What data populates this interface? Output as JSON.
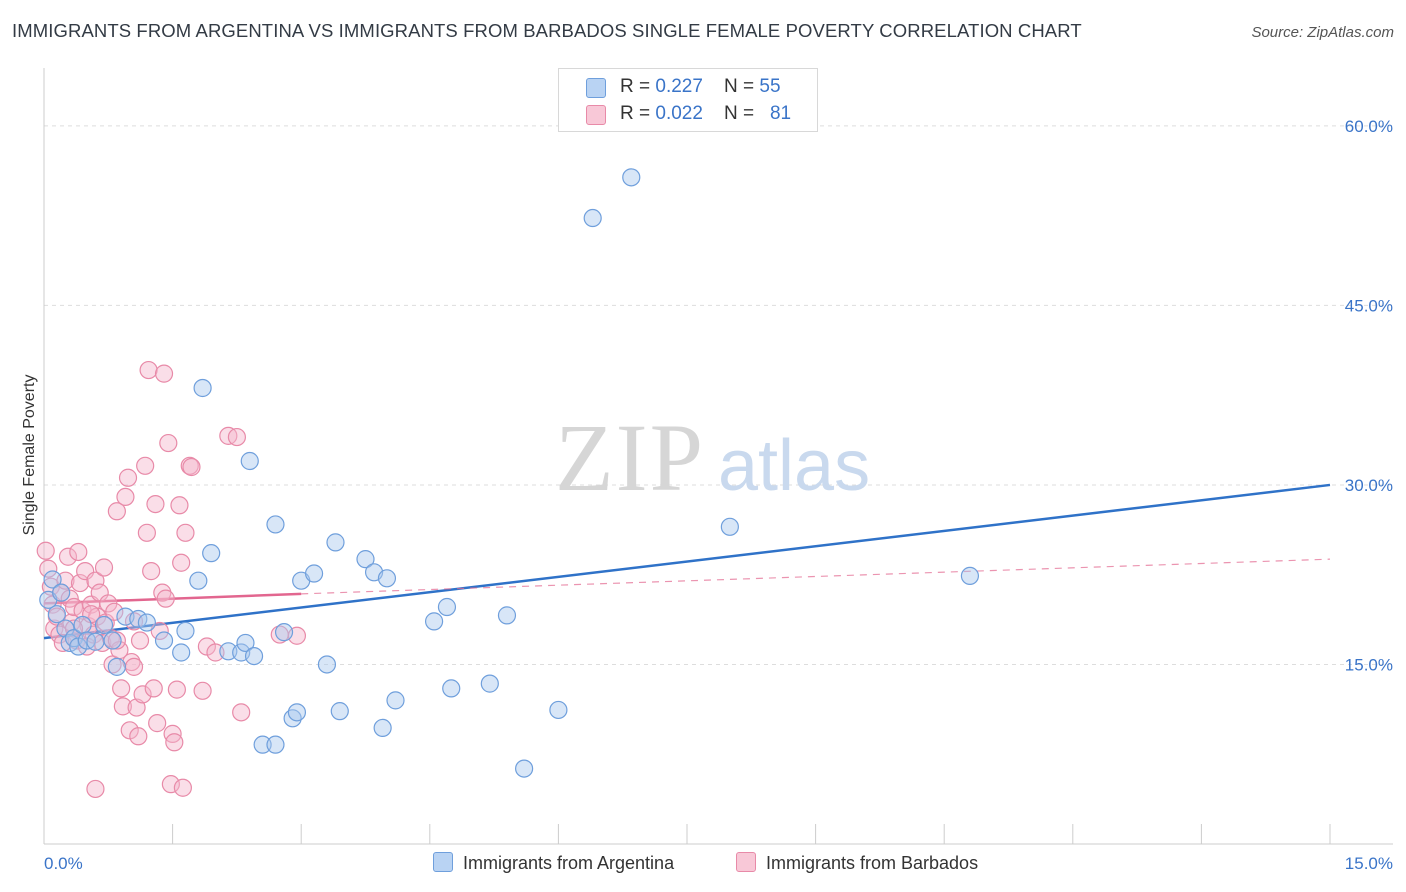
{
  "title": "IMMIGRANTS FROM ARGENTINA VS IMMIGRANTS FROM BARBADOS SINGLE FEMALE POVERTY CORRELATION CHART",
  "source": "Source: ZipAtlas.com",
  "watermark": {
    "zip": "ZIP",
    "atlas": "atlas"
  },
  "legend": {
    "argentina": {
      "r_label": "R = ",
      "r_value": "0.227",
      "n_label": "N = ",
      "n_value": "55"
    },
    "barbados": {
      "r_label": "R = ",
      "r_value": "0.022",
      "n_label": "N = ",
      "n_value": "81"
    }
  },
  "colors": {
    "argentina_fill": "#a9c8ee",
    "argentina_stroke": "#6f9fdc",
    "argentina_line": "#2f72c8",
    "barbados_fill": "#f5b6cb",
    "barbados_stroke": "#e88aa8",
    "barbados_line": "#e2668f",
    "axis_text": "#3a74c8",
    "grid": "#dddddd"
  },
  "chart_data": {
    "type": "scatter",
    "title": "IMMIGRANTS FROM ARGENTINA VS IMMIGRANTS FROM BARBADOS SINGLE FEMALE POVERTY CORRELATION CHART",
    "xlabel": "",
    "ylabel": "Single Female Poverty",
    "xlim": [
      0,
      15
    ],
    "ylim": [
      0,
      64
    ],
    "x_tick_labels": [
      "0.0%",
      "15.0%"
    ],
    "y_ticks": [
      15,
      30,
      45,
      60
    ],
    "y_tick_labels": [
      "15.0%",
      "30.0%",
      "45.0%",
      "60.0%"
    ],
    "grid": true,
    "series": [
      {
        "name": "Immigrants from Argentina",
        "r": 0.227,
        "n": 55,
        "trend": {
          "x": [
            0,
            15
          ],
          "y": [
            17.2,
            30.0
          ]
        },
        "points": [
          [
            0.05,
            20.4
          ],
          [
            0.1,
            22.1
          ],
          [
            0.15,
            19.2
          ],
          [
            0.2,
            21.0
          ],
          [
            0.25,
            18.0
          ],
          [
            0.3,
            16.8
          ],
          [
            0.35,
            17.2
          ],
          [
            0.4,
            16.5
          ],
          [
            0.45,
            18.3
          ],
          [
            0.5,
            17.0
          ],
          [
            0.6,
            16.9
          ],
          [
            0.7,
            18.3
          ],
          [
            0.8,
            17.0
          ],
          [
            0.85,
            14.8
          ],
          [
            0.95,
            19.0
          ],
          [
            1.1,
            18.8
          ],
          [
            1.2,
            18.5
          ],
          [
            1.4,
            17.0
          ],
          [
            1.6,
            16.0
          ],
          [
            1.65,
            17.8
          ],
          [
            1.8,
            22.0
          ],
          [
            1.95,
            24.3
          ],
          [
            2.15,
            16.1
          ],
          [
            2.3,
            16.0
          ],
          [
            2.35,
            16.8
          ],
          [
            2.45,
            15.7
          ],
          [
            2.55,
            8.3
          ],
          [
            2.7,
            8.3
          ],
          [
            2.8,
            17.7
          ],
          [
            2.9,
            10.5
          ],
          [
            2.95,
            11.0
          ],
          [
            3.0,
            22.0
          ],
          [
            3.15,
            22.6
          ],
          [
            3.3,
            15.0
          ],
          [
            3.4,
            25.2
          ],
          [
            3.45,
            11.1
          ],
          [
            3.75,
            23.8
          ],
          [
            3.85,
            22.7
          ],
          [
            3.95,
            9.7
          ],
          [
            4.0,
            22.2
          ],
          [
            4.1,
            12.0
          ],
          [
            4.55,
            18.6
          ],
          [
            4.7,
            19.8
          ],
          [
            4.75,
            13.0
          ],
          [
            5.2,
            13.4
          ],
          [
            5.4,
            19.1
          ],
          [
            5.6,
            6.3
          ],
          [
            6.0,
            11.2
          ],
          [
            6.4,
            52.3
          ],
          [
            6.85,
            55.7
          ],
          [
            8.0,
            26.5
          ],
          [
            10.8,
            22.4
          ],
          [
            1.85,
            38.1
          ],
          [
            2.4,
            32.0
          ],
          [
            2.7,
            26.7
          ]
        ]
      },
      {
        "name": "Immigrants from Barbados",
        "r": 0.022,
        "n": 81,
        "trend": {
          "x": [
            0,
            3.0
          ],
          "y": [
            20.1,
            20.9
          ]
        },
        "trend_dashed": {
          "x": [
            3.0,
            15
          ],
          "y": [
            20.9,
            23.8
          ]
        },
        "points": [
          [
            0.02,
            24.5
          ],
          [
            0.05,
            23.0
          ],
          [
            0.08,
            21.5
          ],
          [
            0.1,
            20.0
          ],
          [
            0.12,
            18.0
          ],
          [
            0.15,
            19.0
          ],
          [
            0.18,
            17.5
          ],
          [
            0.2,
            21.0
          ],
          [
            0.22,
            16.8
          ],
          [
            0.25,
            22.0
          ],
          [
            0.28,
            24.0
          ],
          [
            0.3,
            20.5
          ],
          [
            0.32,
            18.5
          ],
          [
            0.35,
            19.8
          ],
          [
            0.38,
            17.0
          ],
          [
            0.4,
            24.4
          ],
          [
            0.42,
            21.8
          ],
          [
            0.45,
            19.5
          ],
          [
            0.48,
            22.8
          ],
          [
            0.5,
            16.5
          ],
          [
            0.52,
            18.2
          ],
          [
            0.55,
            20.0
          ],
          [
            0.58,
            17.5
          ],
          [
            0.6,
            22.0
          ],
          [
            0.62,
            19.0
          ],
          [
            0.65,
            21.0
          ],
          [
            0.68,
            16.8
          ],
          [
            0.7,
            23.1
          ],
          [
            0.72,
            18.5
          ],
          [
            0.75,
            20.1
          ],
          [
            0.78,
            17.2
          ],
          [
            0.8,
            15.0
          ],
          [
            0.82,
            19.4
          ],
          [
            0.85,
            27.8
          ],
          [
            0.88,
            16.2
          ],
          [
            0.9,
            13.0
          ],
          [
            0.92,
            11.5
          ],
          [
            0.95,
            29.0
          ],
          [
            0.98,
            30.6
          ],
          [
            1.0,
            9.5
          ],
          [
            1.02,
            15.2
          ],
          [
            1.05,
            14.8
          ],
          [
            1.08,
            11.4
          ],
          [
            1.1,
            9.0
          ],
          [
            1.12,
            17.0
          ],
          [
            1.15,
            12.5
          ],
          [
            1.18,
            31.6
          ],
          [
            1.2,
            26.0
          ],
          [
            1.22,
            39.6
          ],
          [
            1.25,
            22.8
          ],
          [
            1.28,
            13.0
          ],
          [
            1.3,
            28.4
          ],
          [
            1.32,
            10.1
          ],
          [
            1.35,
            17.8
          ],
          [
            1.38,
            21.0
          ],
          [
            1.4,
            39.3
          ],
          [
            1.42,
            20.5
          ],
          [
            1.45,
            33.5
          ],
          [
            1.48,
            5.0
          ],
          [
            1.5,
            9.2
          ],
          [
            1.52,
            8.5
          ],
          [
            1.55,
            12.9
          ],
          [
            1.58,
            28.3
          ],
          [
            1.6,
            23.5
          ],
          [
            1.62,
            4.7
          ],
          [
            1.65,
            26.0
          ],
          [
            1.7,
            31.6
          ],
          [
            1.72,
            31.5
          ],
          [
            1.85,
            12.8
          ],
          [
            1.9,
            16.5
          ],
          [
            2.0,
            16.0
          ],
          [
            2.15,
            34.1
          ],
          [
            2.25,
            34.0
          ],
          [
            2.3,
            11.0
          ],
          [
            2.75,
            17.5
          ],
          [
            2.95,
            17.4
          ],
          [
            0.6,
            4.6
          ],
          [
            0.85,
            17.0
          ],
          [
            0.35,
            18.0
          ],
          [
            0.55,
            19.2
          ],
          [
            1.05,
            18.6
          ]
        ]
      }
    ]
  },
  "bottom_legend": {
    "argentina_label": "Immigrants from Argentina",
    "barbados_label": "Immigrants from Barbados"
  }
}
